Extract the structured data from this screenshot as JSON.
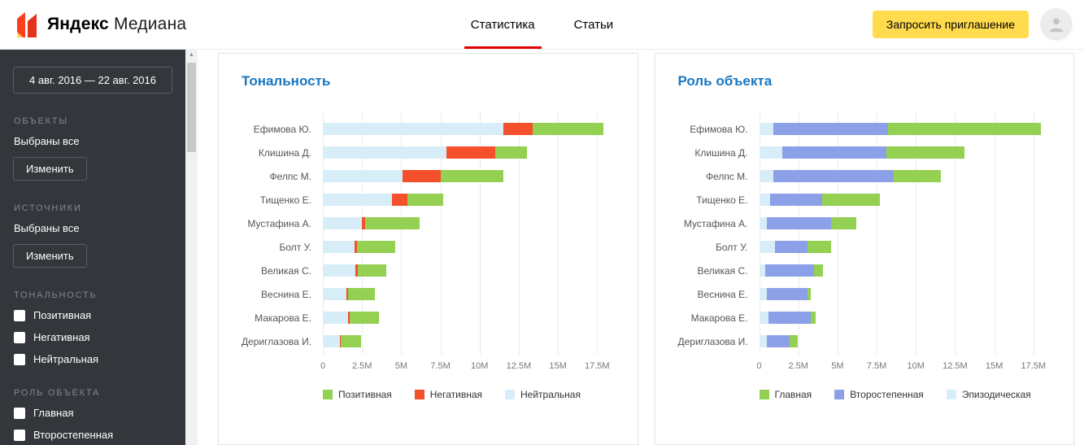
{
  "header": {
    "logo_text_1": "Яндекс",
    "logo_text_2": "Медиана",
    "nav": [
      {
        "label": "Статистика",
        "active": true
      },
      {
        "label": "Статьи",
        "active": false
      }
    ],
    "invite_button": "Запросить приглашение"
  },
  "sidebar": {
    "date_range": "4 авг. 2016 — 22 авг. 2016",
    "sections": [
      {
        "title": "ОБЪЕКТЫ",
        "subtitle": "Выбраны все",
        "button": "Изменить"
      },
      {
        "title": "ИСТОЧНИКИ",
        "subtitle": "Выбраны все",
        "button": "Изменить"
      },
      {
        "title": "ТОНАЛЬНОСТЬ",
        "items": [
          "Позитивная",
          "Негативная",
          "Нейтральная"
        ]
      },
      {
        "title": "РОЛЬ ОБЪЕКТА",
        "items": [
          "Главная",
          "Второстепенная"
        ]
      }
    ]
  },
  "colors": {
    "accent_red": "#e10000",
    "brand_yellow": "#ffdb4d",
    "chart_title_blue": "#1977c2",
    "sidebar_bg": "#33363b",
    "positive_green": "#94d052",
    "negative_red": "#f4502b",
    "neutral_blue": "#d7edf8",
    "secondary_periwinkle": "#8ca0e8"
  },
  "chart_data": [
    {
      "type": "bar",
      "orientation": "horizontal",
      "stacked": true,
      "grid": true,
      "title": "Тональность",
      "unit": "M",
      "xlim": [
        0,
        18.6
      ],
      "tick_values": [
        0,
        2.5,
        5,
        7.5,
        10,
        12.5,
        15,
        17.5
      ],
      "tick_labels": [
        "0",
        "2.5M",
        "5M",
        "7.5M",
        "10M",
        "12.5M",
        "15M",
        "17.5M"
      ],
      "categories": [
        "Ефимова Ю.",
        "Клишина Д.",
        "Фелпс М.",
        "Тищенко Е.",
        "Мустафина А.",
        "Болт У.",
        "Великая С.",
        "Веснина Е.",
        "Макарова Е.",
        "Дериглазова И."
      ],
      "series": [
        {
          "name": "Нейтральная",
          "color": "#d7edf8",
          "values": [
            11.5,
            7.9,
            5.1,
            4.4,
            2.5,
            2.0,
            2.1,
            1.5,
            1.6,
            1.1
          ]
        },
        {
          "name": "Негативная",
          "color": "#f4502b",
          "values": [
            1.9,
            3.1,
            2.4,
            1.0,
            0.2,
            0.2,
            0.15,
            0.1,
            0.1,
            0.05
          ]
        },
        {
          "name": "Позитивная",
          "color": "#94d052",
          "values": [
            4.5,
            2.0,
            4.0,
            2.3,
            3.5,
            2.4,
            1.8,
            1.7,
            1.9,
            1.3
          ]
        }
      ],
      "legend": [
        {
          "label": "Позитивная",
          "color": "#94d052"
        },
        {
          "label": "Негативная",
          "color": "#f4502b"
        },
        {
          "label": "Нейтральная",
          "color": "#d7edf8"
        }
      ],
      "legend_position": "bottom"
    },
    {
      "type": "bar",
      "orientation": "horizontal",
      "stacked": true,
      "grid": true,
      "title": "Роль объекта",
      "unit": "M",
      "xlim": [
        0,
        18.6
      ],
      "tick_values": [
        0,
        2.5,
        5,
        7.5,
        10,
        12.5,
        15,
        17.5
      ],
      "tick_labels": [
        "0",
        "2.5M",
        "5M",
        "7.5M",
        "10M",
        "12.5M",
        "15M",
        "17.5M"
      ],
      "categories": [
        "Ефимова Ю.",
        "Клишина Д.",
        "Фелпс М.",
        "Тищенко Е.",
        "Мустафина А.",
        "Болт У.",
        "Великая С.",
        "Веснина Е.",
        "Макарова Е.",
        "Дериглазова И."
      ],
      "series": [
        {
          "name": "Эпизодическая",
          "color": "#d7edf8",
          "values": [
            0.9,
            1.5,
            0.9,
            0.7,
            0.5,
            1.0,
            0.4,
            0.5,
            0.6,
            0.5
          ]
        },
        {
          "name": "Второстепенная",
          "color": "#8ca0e8",
          "values": [
            7.3,
            6.6,
            7.7,
            3.3,
            4.1,
            2.1,
            3.1,
            2.6,
            2.7,
            1.45
          ]
        },
        {
          "name": "Главная",
          "color": "#94d052",
          "values": [
            9.8,
            5.0,
            3.0,
            3.7,
            1.6,
            1.5,
            0.55,
            0.2,
            0.3,
            0.5
          ]
        }
      ],
      "legend": [
        {
          "label": "Главная",
          "color": "#94d052"
        },
        {
          "label": "Второстепенная",
          "color": "#8ca0e8"
        },
        {
          "label": "Эпизодическая",
          "color": "#d7edf8"
        }
      ],
      "legend_position": "bottom"
    }
  ]
}
